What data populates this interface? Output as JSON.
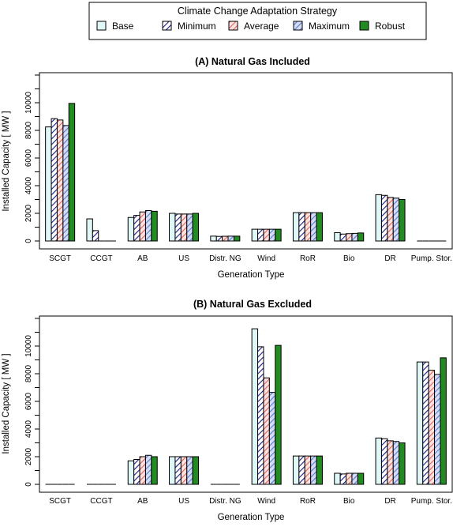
{
  "legend": {
    "title": "Climate Change Adaptation Strategy",
    "entries": [
      {
        "name": "Base",
        "key": "base"
      },
      {
        "name": "Minimum",
        "key": "minimum"
      },
      {
        "name": "Average",
        "key": "average"
      },
      {
        "name": "Maximum",
        "key": "maximum"
      },
      {
        "name": "Robust",
        "key": "robust"
      }
    ]
  },
  "styles": {
    "base": {
      "fill": "#e0f7f7",
      "hatch": null,
      "hatch_color": null
    },
    "minimum": {
      "fill": "#ffffff",
      "hatch": "diag",
      "hatch_color": "#1a1a8c"
    },
    "average": {
      "fill": "#fbe3e0",
      "hatch": "diag",
      "hatch_color": "#e06060"
    },
    "maximum": {
      "fill": "#d5dcf5",
      "hatch": "diag",
      "hatch_color": "#5a7ad0"
    },
    "robust": {
      "fill": "#228b22",
      "hatch": null,
      "hatch_color": null
    }
  },
  "chart_data": [
    {
      "type": "bar",
      "title": "(A) Natural Gas Included",
      "xlabel": "Generation Type",
      "ylabel": "Installed Capacity [ MW ]",
      "ylim": [
        0,
        12000
      ],
      "yticks": [
        0,
        2000,
        4000,
        6000,
        8000,
        10000
      ],
      "categories": [
        "SCGT",
        "CCGT",
        "AB",
        "US",
        "Distr. NG",
        "Wind",
        "RoR",
        "Bio",
        "DR",
        "Pump. Stor."
      ],
      "series": [
        {
          "name": "Base",
          "values": [
            8250,
            1600,
            1700,
            2000,
            350,
            850,
            2050,
            600,
            3350,
            0
          ]
        },
        {
          "name": "Minimum",
          "values": [
            8850,
            750,
            1850,
            1950,
            330,
            850,
            2050,
            500,
            3300,
            0
          ]
        },
        {
          "name": "Average",
          "values": [
            8750,
            0,
            2100,
            1950,
            340,
            850,
            2050,
            530,
            3150,
            0
          ]
        },
        {
          "name": "Maximum",
          "values": [
            8350,
            0,
            2200,
            1950,
            350,
            850,
            2050,
            550,
            3100,
            0
          ]
        },
        {
          "name": "Robust",
          "values": [
            9950,
            0,
            2150,
            2000,
            350,
            850,
            2050,
            580,
            3000,
            0
          ]
        }
      ]
    },
    {
      "type": "bar",
      "title": "(B) Natural Gas Excluded",
      "xlabel": "Generation Type",
      "ylabel": "Installed Capacity [ MW ]",
      "ylim": [
        0,
        12000
      ],
      "yticks": [
        0,
        2000,
        4000,
        6000,
        8000,
        10000
      ],
      "categories": [
        "SCGT",
        "CCGT",
        "AB",
        "US",
        "Distr. NG",
        "Wind",
        "RoR",
        "Bio",
        "DR",
        "Pump. Stor."
      ],
      "series": [
        {
          "name": "Base",
          "values": [
            0,
            0,
            1700,
            2000,
            0,
            11250,
            2050,
            800,
            3350,
            8850
          ]
        },
        {
          "name": "Minimum",
          "values": [
            0,
            0,
            1800,
            2000,
            0,
            9950,
            2050,
            750,
            3300,
            8850
          ]
        },
        {
          "name": "Average",
          "values": [
            0,
            0,
            2000,
            2000,
            0,
            7700,
            2050,
            800,
            3150,
            8250
          ]
        },
        {
          "name": "Maximum",
          "values": [
            0,
            0,
            2100,
            2000,
            0,
            6650,
            2050,
            800,
            3100,
            7950
          ]
        },
        {
          "name": "Robust",
          "values": [
            0,
            0,
            2000,
            2000,
            0,
            10050,
            2050,
            800,
            3000,
            9150
          ]
        }
      ]
    }
  ]
}
